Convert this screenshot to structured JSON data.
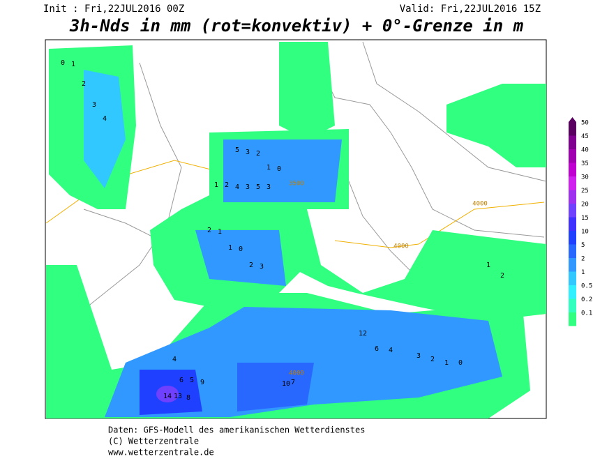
{
  "header": {
    "init": "Init : Fri,22JUL2016 00Z",
    "valid": "Valid: Fri,22JUL2016 15Z",
    "title": "3h-Nds in mm (rot=konvektiv) + 0°-Grenze in m"
  },
  "legend": [
    {
      "value": 50,
      "color": "#5a0060"
    },
    {
      "value": 45,
      "color": "#800090"
    },
    {
      "value": 40,
      "color": "#a000b0"
    },
    {
      "value": 35,
      "color": "#c000d0"
    },
    {
      "value": 30,
      "color": "#d020f0"
    },
    {
      "value": 25,
      "color": "#a030f0"
    },
    {
      "value": 20,
      "color": "#7040ff"
    },
    {
      "value": 15,
      "color": "#4030ff"
    },
    {
      "value": 10,
      "color": "#2040ff"
    },
    {
      "value": 5,
      "color": "#2868ff"
    },
    {
      "value": 2,
      "color": "#3098ff"
    },
    {
      "value": 1,
      "color": "#30c8ff"
    },
    {
      "value": 0.5,
      "color": "#30f0ff"
    },
    {
      "value": 0.2,
      "color": "#30ffc0"
    },
    {
      "value": 0.1,
      "color": "#30ff80"
    }
  ],
  "map": {
    "contour_labels": [
      "3500",
      "4000",
      "4000",
      "4000"
    ],
    "point_labels": [
      0,
      1,
      2,
      3,
      4,
      5,
      3,
      2,
      1,
      0,
      1,
      2,
      4,
      3,
      5,
      3,
      2,
      1,
      1,
      0,
      2,
      3,
      4,
      6,
      5,
      9,
      14,
      13,
      8,
      7,
      10,
      12,
      6,
      4,
      3,
      2,
      1,
      0,
      1,
      2
    ]
  },
  "footer": {
    "source": "Daten: GFS-Modell des amerikanischen Wetterdienstes",
    "copyright": "(C) Wetterzentrale",
    "url": "www.wetterzentrale.de"
  }
}
